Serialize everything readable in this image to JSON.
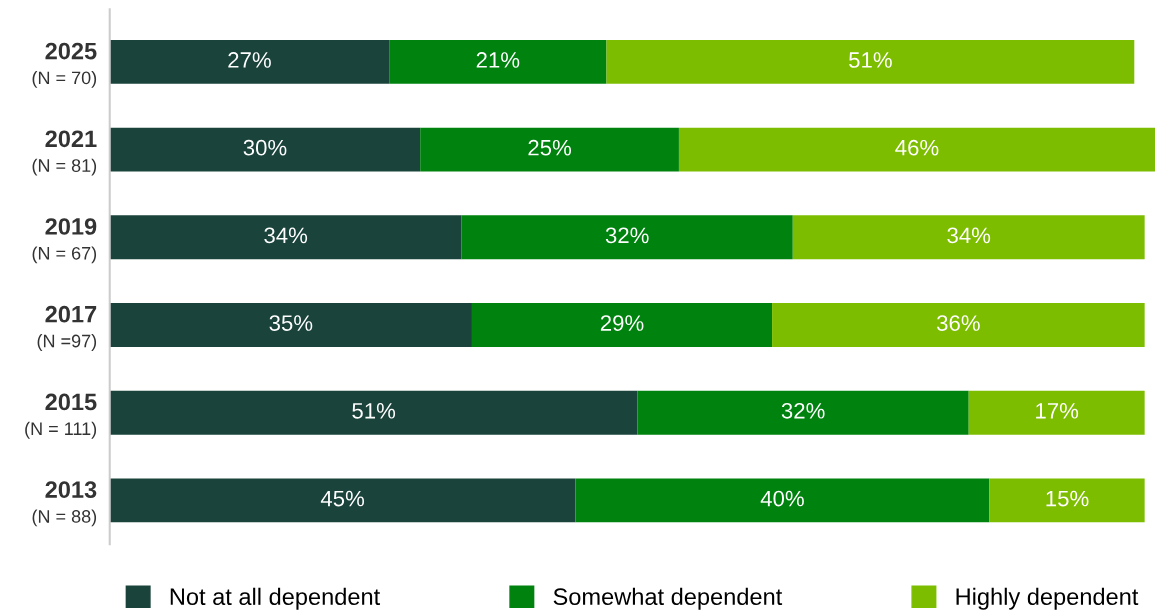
{
  "chart_data": {
    "type": "bar",
    "orientation": "horizontal",
    "stacked": true,
    "categories": [
      "2025\n(N = 70)",
      "2021\n(N = 81)",
      "2019\n(N = 67)",
      "2017\n(N =97)",
      "2015\n(N = 111)",
      "2013\n(N = 88)"
    ],
    "xlim": [
      0,
      101
    ],
    "series": [
      {
        "name": "Not at all dependent",
        "color": "#1a433b",
        "values": [
          27,
          30,
          34,
          35,
          51,
          45
        ],
        "value_labels": [
          "27%",
          "30%",
          "34%",
          "35%",
          "51%",
          "45%"
        ]
      },
      {
        "name": "Somewhat dependent",
        "color": "#00820f",
        "values": [
          21,
          25,
          32,
          29,
          32,
          40
        ],
        "value_labels": [
          "21%",
          "25%",
          "32%",
          "29%",
          "32%",
          "40%"
        ]
      },
      {
        "name": "Highly dependent",
        "color": "#7dbd00",
        "values": [
          51,
          46,
          34,
          36,
          17,
          15
        ],
        "value_labels": [
          "51%",
          "46%",
          "34%",
          "36%",
          "17%",
          "15%"
        ]
      }
    ],
    "legend": "bottom",
    "grid": false
  }
}
